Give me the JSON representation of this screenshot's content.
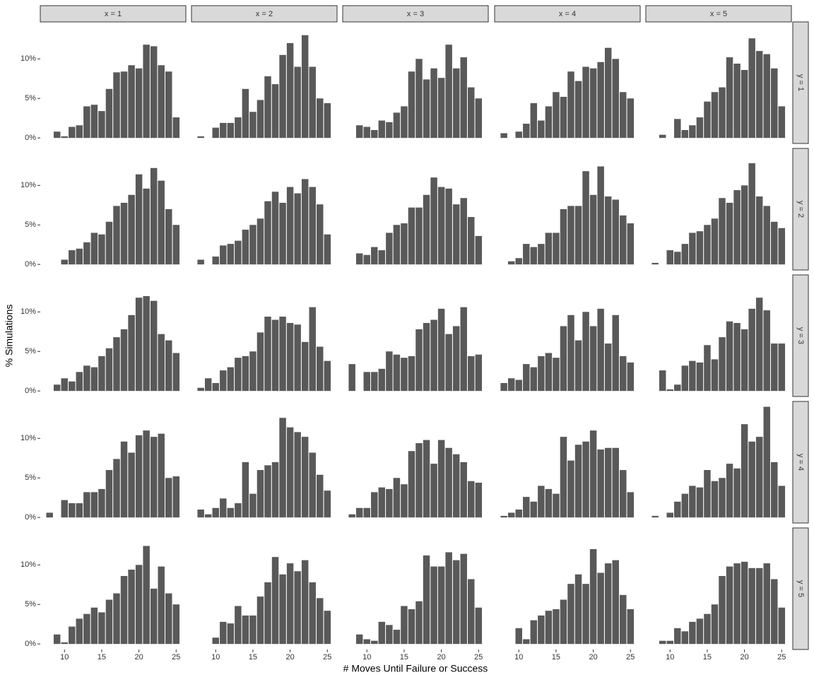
{
  "chart_data": {
    "type": "bar",
    "xlabel": "# Moves Until Failure or Success",
    "ylabel": "% Simulations",
    "color": "#595959",
    "col_labels": [
      "x = 1",
      "x = 2",
      "x = 3",
      "x = 4",
      "x = 5"
    ],
    "row_labels": [
      "y = 1",
      "y = 2",
      "y = 3",
      "y = 4",
      "y = 5"
    ],
    "x": [
      8,
      9,
      10,
      11,
      12,
      13,
      14,
      15,
      16,
      17,
      18,
      19,
      20,
      21,
      22,
      23,
      24,
      25
    ],
    "xlim": [
      6.75,
      26.3
    ],
    "xticks": [
      10,
      15,
      20,
      25
    ],
    "ylim": [
      -0.7,
      14.5
    ],
    "yticks": [
      {
        "value": 0,
        "label": "0%"
      },
      {
        "value": 5,
        "label": "5%"
      },
      {
        "value": 10,
        "label": "10%"
      }
    ],
    "panels": [
      {
        "values": [
          0,
          0.8,
          0.2,
          1.4,
          1.6,
          4.0,
          4.2,
          3.4,
          6.2,
          8.3,
          8.4,
          9.2,
          8.8,
          11.8,
          11.6,
          9.2,
          8.4,
          2.6
        ]
      },
      {
        "values": [
          0.2,
          0,
          1.3,
          1.9,
          1.9,
          2.6,
          6.2,
          3.3,
          4.8,
          7.8,
          6.8,
          10.5,
          12.0,
          9.0,
          13.0,
          9.0,
          5.0,
          4.4
        ]
      },
      {
        "values": [
          0,
          1.6,
          1.4,
          1.0,
          2.2,
          2.0,
          3.2,
          4.0,
          8.4,
          10.0,
          7.4,
          8.8,
          7.6,
          11.8,
          8.8,
          10.2,
          6.4,
          5.0
        ]
      },
      {
        "values": [
          0.6,
          0,
          0.8,
          1.8,
          4.4,
          2.2,
          4.0,
          5.8,
          5.2,
          8.4,
          7.2,
          9.0,
          8.8,
          9.6,
          11.4,
          10.0,
          5.8,
          5.0
        ]
      },
      {
        "values": [
          0,
          0.4,
          0,
          2.4,
          1.0,
          1.6,
          2.6,
          4.6,
          5.8,
          6.4,
          10.2,
          9.4,
          8.6,
          12.6,
          11.0,
          10.6,
          8.8,
          4.0
        ]
      },
      {
        "values": [
          0,
          0,
          0.6,
          1.8,
          2.0,
          2.8,
          4.0,
          3.8,
          5.4,
          7.4,
          7.8,
          8.8,
          11.4,
          9.6,
          12.2,
          10.6,
          7.0,
          5.0
        ]
      },
      {
        "values": [
          0.6,
          0,
          1.0,
          2.4,
          2.6,
          3.0,
          4.4,
          5.0,
          5.8,
          8.0,
          9.2,
          7.8,
          9.8,
          9.0,
          10.8,
          9.8,
          7.6,
          3.8
        ]
      },
      {
        "values": [
          0,
          1.4,
          1.2,
          2.2,
          1.8,
          4.0,
          5.0,
          5.2,
          7.2,
          7.2,
          8.8,
          11.0,
          9.8,
          9.6,
          7.6,
          8.4,
          6.0,
          3.6
        ]
      },
      {
        "values": [
          0,
          0.4,
          0.8,
          2.6,
          2.2,
          2.6,
          4.0,
          4.0,
          7.0,
          7.4,
          7.4,
          11.8,
          8.8,
          12.4,
          8.6,
          8.2,
          6.2,
          5.2
        ]
      },
      {
        "values": [
          0.2,
          0,
          1.8,
          1.6,
          2.6,
          4.0,
          4.2,
          5.0,
          5.8,
          8.4,
          7.8,
          9.4,
          10.0,
          12.8,
          8.6,
          7.4,
          5.4,
          4.6
        ]
      },
      {
        "values": [
          0,
          0.8,
          1.6,
          1.2,
          2.4,
          3.2,
          3.0,
          4.4,
          5.4,
          6.8,
          7.8,
          9.6,
          11.8,
          12.0,
          11.4,
          7.2,
          6.4,
          4.8
        ]
      },
      {
        "values": [
          0.4,
          1.6,
          1.0,
          2.6,
          3.0,
          4.2,
          4.4,
          5.0,
          7.4,
          9.4,
          9.0,
          9.4,
          8.6,
          8.4,
          6.2,
          10.6,
          5.6,
          3.8
        ]
      },
      {
        "values": [
          3.4,
          0,
          2.4,
          2.4,
          2.8,
          5.0,
          4.6,
          4.2,
          4.4,
          7.8,
          8.6,
          9.0,
          10.4,
          7.2,
          8.2,
          10.6,
          4.4,
          4.6
        ]
      },
      {
        "values": [
          1.0,
          1.6,
          1.4,
          3.4,
          3.0,
          4.4,
          4.8,
          4.2,
          8.2,
          9.6,
          6.4,
          10.0,
          8.2,
          10.4,
          6.0,
          9.6,
          4.4,
          3.6
        ]
      },
      {
        "values": [
          0,
          2.6,
          0.2,
          0.8,
          3.2,
          3.8,
          3.6,
          5.8,
          4.0,
          6.8,
          8.8,
          8.6,
          7.8,
          10.4,
          11.8,
          10.2,
          6.0,
          6.0
        ]
      },
      {
        "values": [
          0.6,
          0,
          2.2,
          1.8,
          1.8,
          3.2,
          3.2,
          3.6,
          6.0,
          7.4,
          9.6,
          8.2,
          10.4,
          11.0,
          10.2,
          10.6,
          5.0,
          5.2
        ]
      },
      {
        "values": [
          1.0,
          0.4,
          1.2,
          2.4,
          1.2,
          1.8,
          7.0,
          3.0,
          6.0,
          6.6,
          7.0,
          12.6,
          11.4,
          10.8,
          10.2,
          8.2,
          5.4,
          3.4
        ]
      },
      {
        "values": [
          0.4,
          1.2,
          1.2,
          3.2,
          3.8,
          3.6,
          5.0,
          4.2,
          8.4,
          9.4,
          9.8,
          6.8,
          9.8,
          8.8,
          8.0,
          7.0,
          4.6,
          4.4
        ]
      },
      {
        "values": [
          0.2,
          0.6,
          1.0,
          2.6,
          2.0,
          4.0,
          3.6,
          3.0,
          10.2,
          7.2,
          9.2,
          9.6,
          11.0,
          8.6,
          8.8,
          8.8,
          6.0,
          3.2
        ]
      },
      {
        "values": [
          0.2,
          0,
          0.6,
          2.0,
          3.0,
          4.0,
          3.8,
          6.0,
          4.6,
          5.0,
          6.8,
          6.2,
          11.8,
          9.6,
          10.2,
          14.0,
          7.0,
          4.0
        ]
      },
      {
        "values": [
          0,
          1.2,
          0.2,
          2.2,
          3.2,
          3.8,
          4.6,
          4.0,
          5.6,
          6.4,
          8.6,
          9.4,
          10.0,
          12.4,
          7.0,
          9.8,
          6.4,
          5.0
        ]
      },
      {
        "values": [
          0,
          0,
          0.8,
          2.8,
          2.6,
          4.8,
          3.6,
          3.6,
          6.0,
          7.8,
          11.0,
          8.8,
          10.2,
          9.2,
          10.6,
          7.8,
          5.8,
          4.2
        ]
      },
      {
        "values": [
          0,
          1.2,
          0.6,
          0.4,
          2.8,
          2.4,
          1.8,
          4.8,
          4.4,
          5.4,
          11.2,
          9.8,
          9.8,
          11.6,
          10.6,
          11.4,
          8.2,
          4.6
        ]
      },
      {
        "values": [
          0,
          0,
          2.0,
          0.6,
          3.0,
          3.6,
          4.2,
          4.4,
          5.6,
          7.6,
          8.8,
          7.6,
          12.0,
          9.0,
          10.2,
          10.6,
          6.2,
          4.4
        ]
      },
      {
        "values": [
          0,
          0.4,
          0.4,
          2.0,
          1.6,
          2.8,
          3.2,
          3.8,
          5.0,
          8.6,
          9.8,
          10.2,
          10.4,
          9.6,
          9.6,
          10.2,
          8.2,
          4.6
        ]
      }
    ]
  }
}
